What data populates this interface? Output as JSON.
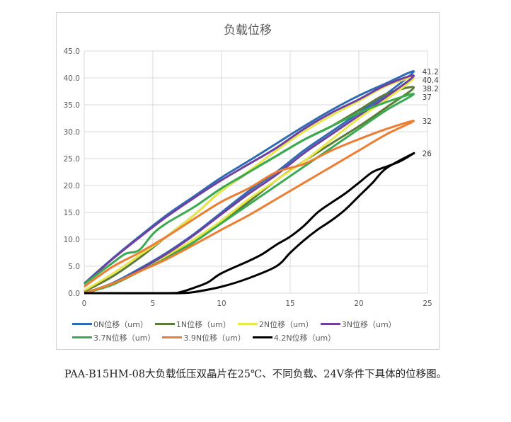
{
  "caption": "PAA-B15HM-08大负载低压双晶片在25℃、不同负载、24V条件下具体的位移图。",
  "chart_data": {
    "type": "line",
    "title": "负载位移",
    "xlim": [
      0,
      25
    ],
    "ylim": [
      0,
      45
    ],
    "xticks": [
      "0",
      "5",
      "10",
      "15",
      "20",
      "25"
    ],
    "yticks": [
      "0.0",
      "5.0",
      "10.0",
      "15.0",
      "20.0",
      "25.0",
      "30.0",
      "35.0",
      "40.0",
      "45.0"
    ],
    "grid": true,
    "legend": "bottom",
    "series": [
      {
        "name": "0N位移（um）",
        "color": "#2e6db4",
        "end_label": "41.2",
        "x": [
          0,
          2,
          4,
          6,
          8,
          10,
          12,
          14,
          16,
          18,
          20,
          22,
          24,
          22,
          20,
          18,
          16,
          14,
          12,
          10,
          8,
          6,
          4,
          2,
          0
        ],
        "y": [
          0,
          1.8,
          4.5,
          7.5,
          11,
          15,
          19,
          22.5,
          26.5,
          30,
          33.5,
          37,
          41.2,
          39,
          36.7,
          34,
          31,
          27.8,
          24.6,
          21.5,
          18,
          14.5,
          10.5,
          6.3,
          1.8
        ]
      },
      {
        "name": "1N位移（um）",
        "color": "#5b7b3a",
        "end_label": "38.2",
        "x": [
          0,
          2,
          4,
          6,
          8,
          10,
          12,
          14,
          16,
          18,
          20,
          22,
          24,
          22,
          20,
          18,
          16,
          14,
          12,
          10,
          8,
          6,
          4,
          2,
          0
        ],
        "y": [
          0,
          1.7,
          4,
          6.8,
          10,
          13.3,
          17,
          21,
          24.5,
          27.8,
          31,
          34.5,
          38.2,
          37,
          34,
          31,
          28.5,
          25.5,
          22.5,
          19,
          14.5,
          10.5,
          6.5,
          3,
          0.3
        ]
      },
      {
        "name": "2N位移（um）",
        "color": "#e8e84a",
        "end_label": "",
        "x": [
          0,
          2,
          4,
          6,
          8,
          10,
          12,
          14,
          16,
          18,
          20,
          22,
          24,
          22,
          20,
          18,
          16,
          14,
          12,
          10,
          8,
          6,
          4,
          2,
          0
        ],
        "y": [
          0,
          1.5,
          4,
          7,
          10,
          13.5,
          17.5,
          21,
          24.5,
          28.5,
          32.5,
          36,
          40,
          38.5,
          35.7,
          33,
          30,
          26.5,
          22.7,
          19,
          14.5,
          10.5,
          7,
          3.5,
          0.5
        ]
      },
      {
        "name": "3N位移（um）",
        "color": "#7040a0",
        "end_label": "40.4",
        "x": [
          0,
          2,
          4,
          6,
          8,
          10,
          12,
          14,
          16,
          18,
          20,
          22,
          24,
          22,
          20,
          18,
          16,
          14,
          12,
          10,
          8,
          6,
          4,
          2,
          0
        ],
        "y": [
          0,
          1.6,
          4.3,
          7.3,
          10.8,
          14.7,
          18.5,
          22,
          26,
          29.5,
          33,
          36.5,
          40.4,
          38.7,
          36,
          33.5,
          30.5,
          27,
          24,
          21,
          17.7,
          14.2,
          10.3,
          6.2,
          1.7
        ]
      },
      {
        "name": "3.7N位移（um）",
        "color": "#3aaa50",
        "end_label": "37",
        "x": [
          0,
          2,
          4,
          6,
          8,
          10,
          12,
          14,
          16,
          18,
          20,
          22,
          24,
          22,
          20,
          18,
          16,
          14,
          12,
          10,
          8,
          6,
          5,
          4,
          3,
          2,
          0
        ],
        "y": [
          0,
          1.5,
          4,
          6.5,
          9.5,
          13,
          16.5,
          20,
          23.5,
          27,
          30.5,
          34,
          37,
          35.5,
          33.5,
          31,
          28.5,
          25.5,
          22.5,
          19.5,
          16,
          13,
          11,
          8,
          7.3,
          5.5,
          1.7
        ]
      },
      {
        "name": "3.9N位移（um）",
        "color": "#ed7d31",
        "end_label": "32",
        "x": [
          0,
          2,
          4,
          6,
          8,
          10,
          12,
          14,
          16,
          18,
          20,
          22,
          24,
          22,
          20,
          18,
          16,
          14,
          12,
          10,
          8,
          6,
          4,
          2,
          0
        ],
        "y": [
          0,
          1.7,
          4,
          6.3,
          9,
          11.8,
          14.5,
          17.5,
          20.5,
          23.5,
          26.5,
          29.5,
          32,
          30.5,
          28.6,
          26.5,
          24,
          22.5,
          19.5,
          17,
          13.8,
          10.5,
          7.5,
          4.8,
          1.2
        ]
      },
      {
        "name": "4.2N位移（um）",
        "color": "#000000",
        "end_label": "26",
        "x": [
          0,
          6,
          7,
          8,
          10,
          12,
          14,
          15,
          16,
          17,
          18,
          19,
          20,
          21,
          22,
          24,
          23,
          22,
          21,
          20,
          19,
          18,
          17,
          16,
          15,
          14,
          13,
          12,
          10,
          9,
          8,
          7,
          6,
          0
        ],
        "y": [
          0,
          0,
          0,
          0.2,
          1.2,
          2.8,
          5,
          7.5,
          9.8,
          11.8,
          13.5,
          15.5,
          18,
          20.5,
          23.2,
          26,
          24.5,
          23.5,
          22.5,
          20.5,
          18.5,
          16.8,
          15,
          12.5,
          10.5,
          9,
          7.3,
          6,
          3.7,
          2,
          1,
          0.2,
          0,
          0
        ]
      }
    ]
  }
}
